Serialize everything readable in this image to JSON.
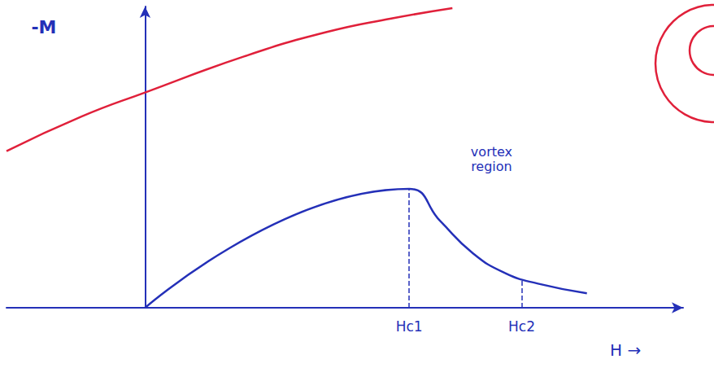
{
  "chart_data": {
    "type": "line",
    "y_label": "-M",
    "x_label": "H →",
    "xlim": [
      -170,
      660
    ],
    "ylim": [
      0,
      375
    ],
    "xticks": [
      {
        "value": 324,
        "label": "Hc1"
      },
      {
        "value": 462,
        "label": "Hc2"
      }
    ],
    "yticks": [],
    "grid": false,
    "tick_labels": "x",
    "series": [
      {
        "color": "#2430b8",
        "x": [
          0,
          324,
          362,
          402,
          442,
          482,
          542
        ],
        "values": [
          0,
          148,
          108,
          68,
          43,
          30,
          18
        ]
      },
      {
        "color": "#e0203a",
        "x": [
          -170,
          -78,
          0,
          122,
          222,
          302,
          377
        ],
        "values": [
          195,
          238,
          268,
          313,
          343,
          360,
          373
        ]
      }
    ],
    "guides": [
      {
        "x": 324,
        "y": 148
      },
      {
        "x": 462,
        "y": 36
      }
    ],
    "annotations": [
      {
        "text": "vortex region",
        "x": 425,
        "y": 185
      }
    ]
  }
}
